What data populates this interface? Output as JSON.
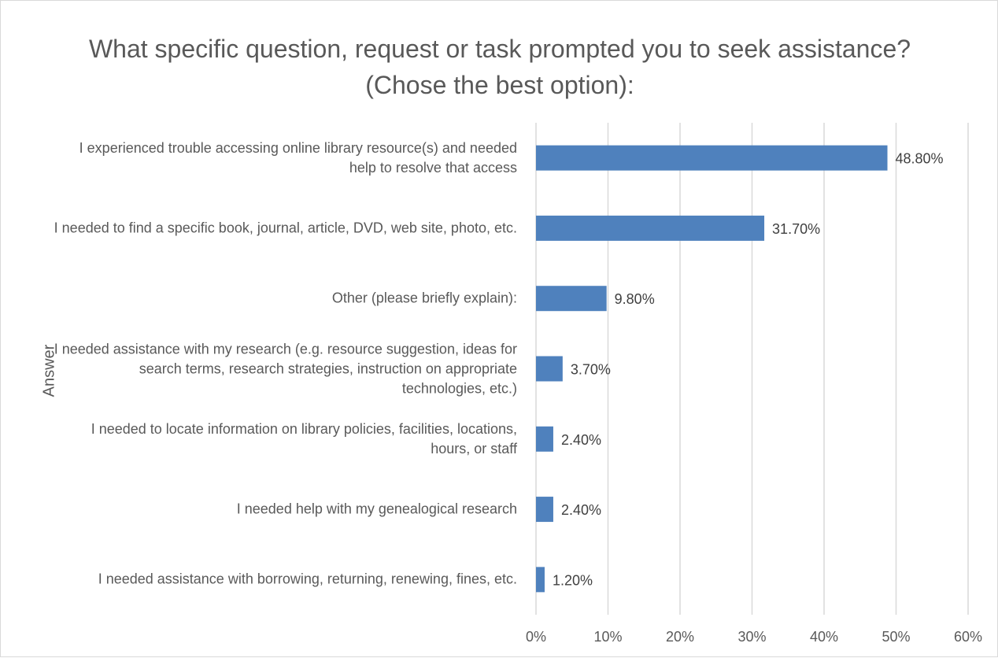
{
  "chart_data": {
    "type": "bar",
    "orientation": "horizontal",
    "title": "What specific question, request or task prompted you to seek assistance? (Chose the best option):",
    "ylabel": "Answer",
    "xlabel": "",
    "xlim": [
      0,
      60
    ],
    "x_ticks": [
      "0%",
      "10%",
      "20%",
      "30%",
      "40%",
      "50%",
      "60%"
    ],
    "grid": "vertical",
    "bar_color": "#4f81bd",
    "categories": [
      "I experienced trouble accessing online library resource(s) and needed help to resolve that access",
      "I needed to find a specific book, journal, article, DVD, web site, photo, etc.",
      "Other (please briefly explain):",
      "I needed assistance with my research (e.g. resource suggestion, ideas for search terms, research strategies, instruction on appropriate technologies, etc.)",
      "I needed to locate information on library policies, facilities, locations, hours, or staff",
      "I needed help with my genealogical research",
      "I needed assistance with borrowing, returning, renewing, fines, etc."
    ],
    "values": [
      48.8,
      31.7,
      9.8,
      3.7,
      2.4,
      2.4,
      1.2
    ],
    "data_labels": [
      "48.80%",
      "31.70%",
      "9.80%",
      "3.70%",
      "2.40%",
      "2.40%",
      "1.20%"
    ]
  }
}
